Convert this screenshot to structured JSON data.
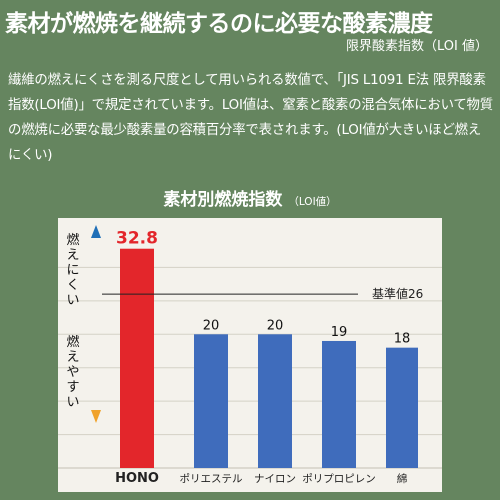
{
  "title": "素材が燃焼を継続するのに必要な酸素濃度",
  "subtitle": "限界酸素指数（LOI 値）",
  "description": "繊維の燃えにくさを測る尺度として用いられる数値で、「JIS L1091 E法 限界酸素指数(LOI値)」で規定されています。LOI値は、窒素と酸素の混合気体において物質の燃焼に必要な最少酸素量の容積百分率で表されます。(LOI値が大きいほど燃えにくい)",
  "colors": {
    "background": "#65855f",
    "plot_bg": "#f4f2ec",
    "highlight_bar": "#e3262b",
    "bar": "#3f6cbc",
    "up_arrow": "#1f6fb7",
    "down_arrow": "#f0a22a"
  },
  "chart_data": {
    "type": "bar",
    "title": "素材別燃焼指数",
    "title_unit": "（LOI値）",
    "categories": [
      "HONO",
      "ポリエステル",
      "ナイロン",
      "ポリプロピレン",
      "綿"
    ],
    "values": [
      32.8,
      20,
      20,
      19,
      18
    ],
    "value_labels": [
      "32.8",
      "20",
      "20",
      "19",
      "18"
    ],
    "ylim": [
      0,
      35
    ],
    "grid": true,
    "reference_line": {
      "value": 26,
      "label": "基準値26"
    },
    "y_annotations": {
      "top": "燃えにくい",
      "bottom": "燃えやすい"
    }
  }
}
